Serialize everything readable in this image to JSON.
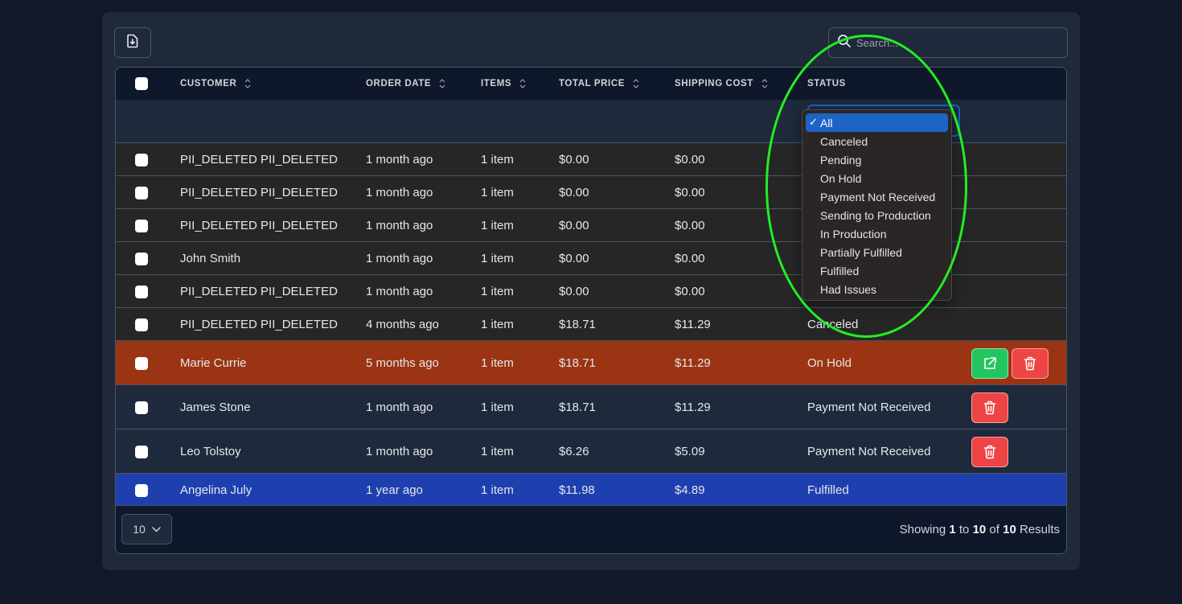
{
  "toolbar": {
    "export_icon": "file-download-icon",
    "search_placeholder": "Search...",
    "search_value": "",
    "search_icon": "search-icon"
  },
  "table": {
    "headers": [
      {
        "label": "CUSTOMER",
        "sortable": true
      },
      {
        "label": "ORDER DATE",
        "sortable": true
      },
      {
        "label": "ITEMS",
        "sortable": true
      },
      {
        "label": "TOTAL PRICE",
        "sortable": true
      },
      {
        "label": "SHIPPING COST",
        "sortable": true
      },
      {
        "label": "STATUS",
        "sortable": false
      }
    ],
    "status_filter": {
      "selected": "All",
      "options": [
        "All",
        "Canceled",
        "Pending",
        "On Hold",
        "Payment Not Received",
        "Sending to Production",
        "In Production",
        "Partially Fulfilled",
        "Fulfilled",
        "Had Issues"
      ]
    },
    "rows": [
      {
        "customer": "PII_DELETED PII_DELETED",
        "order_date": "1 month ago",
        "items": "1 item",
        "total": "$0.00",
        "shipping": "$0.00",
        "status": "",
        "bg": "#262626",
        "actions": []
      },
      {
        "customer": "PII_DELETED PII_DELETED",
        "order_date": "1 month ago",
        "items": "1 item",
        "total": "$0.00",
        "shipping": "$0.00",
        "status": "",
        "bg": "#262626",
        "actions": []
      },
      {
        "customer": "PII_DELETED PII_DELETED",
        "order_date": "1 month ago",
        "items": "1 item",
        "total": "$0.00",
        "shipping": "$0.00",
        "status": "",
        "bg": "#262626",
        "actions": []
      },
      {
        "customer": "John Smith",
        "order_date": "1 month ago",
        "items": "1 item",
        "total": "$0.00",
        "shipping": "$0.00",
        "status": "",
        "bg": "#262626",
        "actions": []
      },
      {
        "customer": "PII_DELETED PII_DELETED",
        "order_date": "1 month ago",
        "items": "1 item",
        "total": "$0.00",
        "shipping": "$0.00",
        "status": "",
        "bg": "#262626",
        "actions": []
      },
      {
        "customer": "PII_DELETED PII_DELETED",
        "order_date": "4 months ago",
        "items": "1 item",
        "total": "$18.71",
        "shipping": "$11.29",
        "status": "Canceled",
        "bg": "#262626",
        "actions": []
      },
      {
        "customer": "Marie Currie",
        "order_date": "5 months ago",
        "items": "1 item",
        "total": "$18.71",
        "shipping": "$11.29",
        "status": "On Hold",
        "bg": "#9a3412",
        "actions": [
          "edit",
          "delete"
        ]
      },
      {
        "customer": "James Stone",
        "order_date": "1 month ago",
        "items": "1 item",
        "total": "$18.71",
        "shipping": "$11.29",
        "status": "Payment Not Received",
        "bg": "#1e293b",
        "actions": [
          "delete"
        ]
      },
      {
        "customer": "Leo Tolstoy",
        "order_date": "1 month ago",
        "items": "1 item",
        "total": "$6.26",
        "shipping": "$5.09",
        "status": "Payment Not Received",
        "bg": "#1e293b",
        "actions": [
          "delete"
        ]
      },
      {
        "customer": "Angelina July",
        "order_date": "1 year ago",
        "items": "1 item",
        "total": "$11.98",
        "shipping": "$4.89",
        "status": "Fulfilled",
        "bg": "#1e40af",
        "actions": []
      }
    ]
  },
  "footer": {
    "page_size": "10",
    "results_prefix": "Showing",
    "from": "1",
    "to_word": "to",
    "to": "10",
    "of_word": "of",
    "total": "10",
    "results_suffix": "Results"
  },
  "colors": {
    "page_bg": "#111827",
    "card_bg": "#1f2937",
    "row_default": "#262626",
    "row_on_hold": "#9a3412",
    "row_payment": "#1e293b",
    "row_fulfilled": "#1e40af",
    "edit_button": "#22c55e",
    "delete_button": "#ef4444",
    "dropdown_selected": "#1d64c6",
    "annotation": "#22ee22"
  }
}
